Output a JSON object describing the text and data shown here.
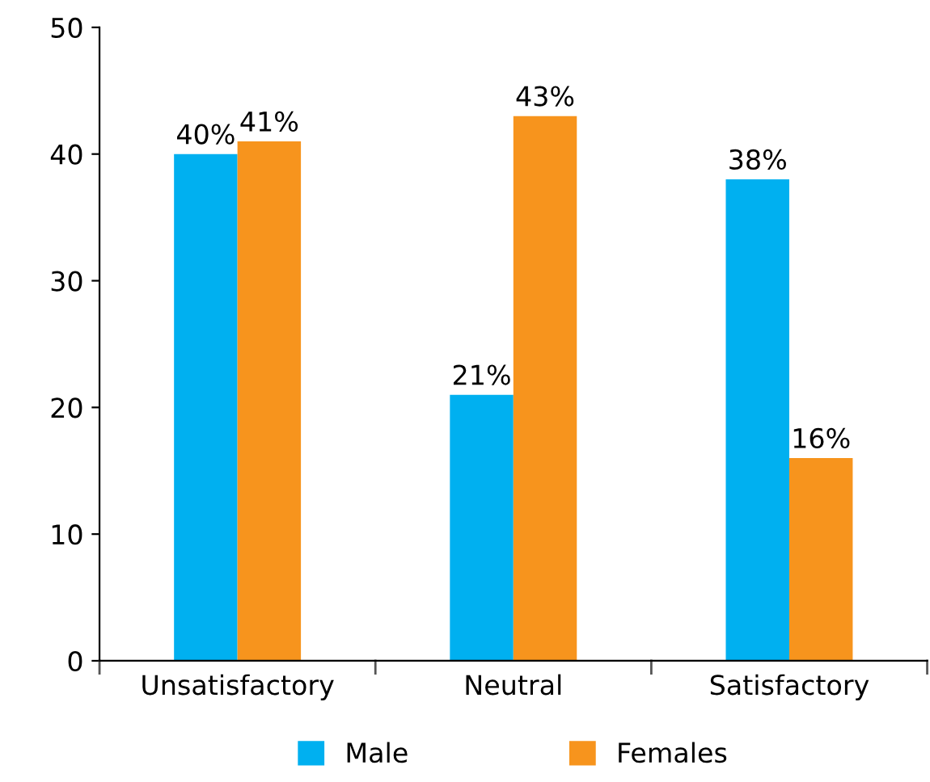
{
  "chart_data": {
    "type": "bar",
    "categories": [
      "Unsatisfactory",
      "Neutral",
      "Satisfactory"
    ],
    "series": [
      {
        "name": "Male",
        "color": "#00b0f0",
        "values": [
          40,
          21,
          38
        ],
        "value_labels": [
          "40%",
          "21%",
          "38%"
        ]
      },
      {
        "name": "Females",
        "color": "#f7941d",
        "values": [
          41,
          43,
          16
        ],
        "value_labels": [
          "41%",
          "43%",
          "16%"
        ]
      }
    ],
    "ylim": [
      0,
      50
    ],
    "yticks": [
      0,
      10,
      20,
      30,
      40,
      50
    ],
    "grid": false,
    "legend": "bottom"
  }
}
